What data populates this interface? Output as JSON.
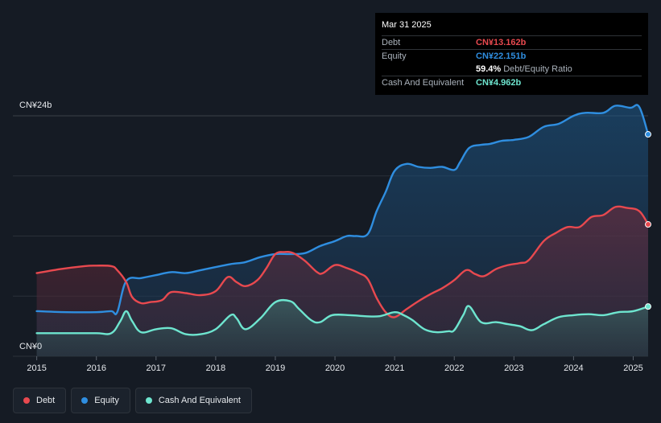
{
  "tooltip": {
    "date": "Mar 31 2025",
    "rows": [
      {
        "label": "Debt",
        "value": "CN¥13.162b"
      },
      {
        "label": "Equity",
        "value": "CN¥22.151b"
      },
      {
        "label": "",
        "value": "59.4%",
        "suffix": "Debt/Equity Ratio"
      },
      {
        "label": "Cash And Equivalent",
        "value": "CN¥4.962b"
      }
    ]
  },
  "legend": [
    {
      "label": "Debt"
    },
    {
      "label": "Equity"
    },
    {
      "label": "Cash And Equivalent"
    }
  ],
  "colors": {
    "debt": "#e8494f",
    "equity": "#2f8ee0",
    "cash": "#6ee5cf",
    "background": "#151b24"
  },
  "chart_data": {
    "type": "area",
    "x_ticks": [
      "2015",
      "2016",
      "2017",
      "2018",
      "2019",
      "2020",
      "2021",
      "2022",
      "2023",
      "2024",
      "2025"
    ],
    "y_tick_labels": [
      "CN¥24b",
      "CN¥0"
    ],
    "ylim": [
      0,
      24
    ],
    "xlim": [
      2014.6,
      2025.25
    ],
    "grid": true,
    "legend_position": "bottom-left",
    "series": [
      {
        "name": "Debt",
        "x": [
          2015.0,
          2015.4,
          2015.8,
          2016.0,
          2016.25,
          2016.35,
          2016.5,
          2016.6,
          2016.75,
          2016.9,
          2017.1,
          2017.25,
          2017.5,
          2017.75,
          2018.0,
          2018.2,
          2018.35,
          2018.5,
          2018.7,
          2018.85,
          2019.0,
          2019.15,
          2019.3,
          2019.5,
          2019.7,
          2019.8,
          2020.0,
          2020.2,
          2020.4,
          2020.55,
          2020.7,
          2020.85,
          2021.0,
          2021.2,
          2021.4,
          2021.6,
          2021.8,
          2022.0,
          2022.2,
          2022.35,
          2022.5,
          2022.7,
          2022.9,
          2023.1,
          2023.25,
          2023.5,
          2023.7,
          2023.9,
          2024.1,
          2024.3,
          2024.5,
          2024.7,
          2024.9,
          2025.1,
          2025.25
        ],
        "values": [
          8.3,
          8.7,
          9.0,
          9.05,
          9.0,
          8.6,
          7.4,
          5.9,
          5.3,
          5.4,
          5.6,
          6.4,
          6.3,
          6.1,
          6.5,
          7.9,
          7.4,
          7.0,
          7.6,
          8.8,
          10.2,
          10.4,
          10.3,
          9.5,
          8.4,
          8.3,
          9.1,
          8.8,
          8.3,
          7.7,
          5.8,
          4.4,
          3.9,
          4.7,
          5.5,
          6.2,
          6.8,
          7.6,
          8.6,
          8.2,
          8.0,
          8.7,
          9.1,
          9.3,
          9.6,
          11.5,
          12.3,
          12.9,
          12.9,
          13.9,
          14.1,
          14.9,
          14.8,
          14.5,
          13.162
        ]
      },
      {
        "name": "Equity",
        "x": [
          2015.0,
          2015.5,
          2016.0,
          2016.25,
          2016.35,
          2016.5,
          2016.75,
          2017.0,
          2017.25,
          2017.5,
          2017.75,
          2018.0,
          2018.25,
          2018.5,
          2018.75,
          2019.0,
          2019.25,
          2019.5,
          2019.75,
          2020.0,
          2020.2,
          2020.35,
          2020.55,
          2020.7,
          2020.85,
          2021.0,
          2021.2,
          2021.4,
          2021.6,
          2021.8,
          2022.0,
          2022.1,
          2022.25,
          2022.45,
          2022.6,
          2022.8,
          2023.0,
          2023.25,
          2023.5,
          2023.75,
          2024.0,
          2024.2,
          2024.5,
          2024.7,
          2024.95,
          2025.1,
          2025.25
        ],
        "values": [
          4.5,
          4.4,
          4.4,
          4.5,
          4.4,
          7.5,
          7.8,
          8.1,
          8.4,
          8.3,
          8.6,
          8.9,
          9.2,
          9.4,
          9.9,
          10.2,
          10.2,
          10.3,
          11.0,
          11.5,
          12.0,
          12.0,
          12.2,
          14.5,
          16.4,
          18.5,
          19.2,
          18.9,
          18.8,
          18.9,
          18.6,
          19.4,
          20.8,
          21.1,
          21.2,
          21.5,
          21.6,
          21.9,
          22.9,
          23.2,
          24.0,
          24.3,
          24.3,
          25.0,
          24.8,
          24.9,
          22.151
        ]
      },
      {
        "name": "Cash And Equivalent",
        "x": [
          2015.0,
          2015.5,
          2016.0,
          2016.25,
          2016.4,
          2016.5,
          2016.6,
          2016.75,
          2017.0,
          2017.25,
          2017.5,
          2017.75,
          2018.0,
          2018.25,
          2018.35,
          2018.5,
          2018.75,
          2019.0,
          2019.25,
          2019.4,
          2019.6,
          2019.75,
          2019.95,
          2020.25,
          2020.5,
          2020.75,
          2021.0,
          2021.15,
          2021.3,
          2021.5,
          2021.7,
          2021.9,
          2022.0,
          2022.15,
          2022.25,
          2022.45,
          2022.7,
          2022.9,
          2023.1,
          2023.3,
          2023.5,
          2023.75,
          2024.0,
          2024.25,
          2024.5,
          2024.75,
          2025.0,
          2025.25
        ],
        "values": [
          2.3,
          2.3,
          2.3,
          2.3,
          3.5,
          4.5,
          3.5,
          2.4,
          2.7,
          2.8,
          2.2,
          2.2,
          2.7,
          4.1,
          3.8,
          2.7,
          3.8,
          5.4,
          5.5,
          4.7,
          3.6,
          3.4,
          4.1,
          4.1,
          4.0,
          4.0,
          4.4,
          4.1,
          3.6,
          2.7,
          2.4,
          2.5,
          2.6,
          4.1,
          5.0,
          3.4,
          3.4,
          3.2,
          3.0,
          2.6,
          3.2,
          3.9,
          4.1,
          4.2,
          4.1,
          4.4,
          4.5,
          4.962
        ]
      }
    ]
  }
}
